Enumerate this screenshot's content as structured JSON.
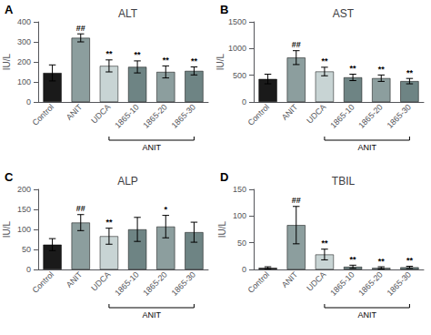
{
  "chart_data": [
    {
      "type": "bar",
      "panel_label": "A",
      "title": "ALT",
      "ylabel": "IU/L",
      "categories": [
        "Control",
        "ANIT",
        "UDCA",
        "1865-10",
        "1865-20",
        "1865-30"
      ],
      "values": [
        145,
        320,
        180,
        175,
        150,
        155
      ],
      "errors": [
        40,
        20,
        30,
        30,
        30,
        20
      ],
      "colors": [
        "#1a1a1a",
        "#8c9e9e",
        "#c8d4d4",
        "#6e8484",
        "#8c9e9e",
        "#6e8484"
      ],
      "ylim": [
        0,
        400
      ],
      "yticks": [
        0,
        100,
        200,
        300,
        400
      ],
      "grid": false,
      "annotations": [
        {
          "text": "##",
          "category": "ANIT"
        },
        {
          "text": "**",
          "category": "UDCA"
        },
        {
          "text": "**",
          "category": "1865-10"
        },
        {
          "text": "**",
          "category": "1865-20"
        },
        {
          "text": "**",
          "category": "1865-30"
        },
        {
          "text": "ANIT",
          "from": "UDCA",
          "to": "1865-30"
        }
      ]
    },
    {
      "type": "bar",
      "panel_label": "B",
      "title": "AST",
      "ylabel": "IU/L",
      "categories": [
        "Control",
        "ANIT",
        "UDCA",
        "1865-10",
        "1865-20",
        "1865-30"
      ],
      "values": [
        430,
        830,
        570,
        460,
        445,
        390
      ],
      "errors": [
        90,
        130,
        80,
        60,
        60,
        50
      ],
      "colors": [
        "#1a1a1a",
        "#8c9e9e",
        "#c8d4d4",
        "#6e8484",
        "#8c9e9e",
        "#6e8484"
      ],
      "ylim": [
        0,
        1500
      ],
      "yticks": [
        0,
        500,
        1000,
        1500
      ],
      "grid": false,
      "annotations": [
        {
          "text": "##",
          "category": "ANIT"
        },
        {
          "text": "**",
          "category": "UDCA"
        },
        {
          "text": "**",
          "category": "1865-10"
        },
        {
          "text": "**",
          "category": "1865-20"
        },
        {
          "text": "**",
          "category": "1865-30"
        },
        {
          "text": "ANIT",
          "from": "UDCA",
          "to": "1865-30"
        }
      ]
    },
    {
      "type": "bar",
      "panel_label": "C",
      "title": "ALP",
      "ylabel": "IU/L",
      "categories": [
        "Control",
        "ANIT",
        "UDCA",
        "1865-10",
        "1865-20",
        "1865-30"
      ],
      "values": [
        62,
        117,
        83,
        100,
        107,
        93
      ],
      "errors": [
        15,
        20,
        20,
        30,
        28,
        25
      ],
      "colors": [
        "#1a1a1a",
        "#8c9e9e",
        "#c8d4d4",
        "#6e8484",
        "#8c9e9e",
        "#6e8484"
      ],
      "ylim": [
        0,
        200
      ],
      "yticks": [
        0,
        50,
        100,
        150,
        200
      ],
      "grid": false,
      "annotations": [
        {
          "text": "##",
          "category": "ANIT"
        },
        {
          "text": "**",
          "category": "UDCA"
        },
        {
          "text": "*",
          "category": "1865-20"
        },
        {
          "text": "ANIT",
          "from": "UDCA",
          "to": "1865-30"
        }
      ]
    },
    {
      "type": "bar",
      "panel_label": "D",
      "title": "TBIL",
      "ylabel": "IU/L",
      "categories": [
        "Control",
        "ANIT",
        "UDCA",
        "1865-10",
        "1865-20",
        "1865-30"
      ],
      "values": [
        3,
        83,
        28,
        5,
        3,
        4
      ],
      "errors": [
        2,
        35,
        10,
        3,
        2,
        2
      ],
      "colors": [
        "#1a1a1a",
        "#8c9e9e",
        "#c8d4d4",
        "#6e8484",
        "#8c9e9e",
        "#6e8484"
      ],
      "ylim": [
        0,
        150
      ],
      "yticks": [
        0,
        50,
        100,
        150
      ],
      "grid": false,
      "annotations": [
        {
          "text": "##",
          "category": "ANIT"
        },
        {
          "text": "**",
          "category": "UDCA"
        },
        {
          "text": "**",
          "category": "1865-10"
        },
        {
          "text": "**",
          "category": "1865-20"
        },
        {
          "text": "**",
          "category": "1865-30"
        },
        {
          "text": "ANIT",
          "from": "UDCA",
          "to": "1865-30"
        }
      ]
    }
  ]
}
